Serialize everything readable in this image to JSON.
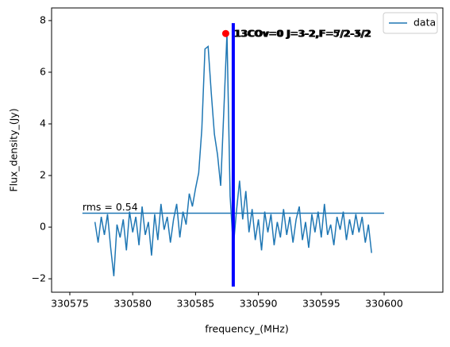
{
  "chart_data": {
    "type": "line",
    "xlabel": "frequency_(MHz)",
    "ylabel": "Flux_density_(Jy)",
    "x": [
      330577,
      330577.25,
      330577.5,
      330577.75,
      330578,
      330578.25,
      330578.5,
      330578.75,
      330579,
      330579.25,
      330579.5,
      330579.75,
      330580,
      330580.25,
      330580.5,
      330580.75,
      330581,
      330581.25,
      330581.5,
      330581.75,
      330582,
      330582.25,
      330582.5,
      330582.75,
      330583,
      330583.25,
      330583.5,
      330583.75,
      330584,
      330584.25,
      330584.5,
      330584.75,
      330585,
      330585.25,
      330585.5,
      330585.75,
      330586,
      330586.25,
      330586.5,
      330586.75,
      330587,
      330587.25,
      330587.5,
      330587.75,
      330588,
      330588.25,
      330588.5,
      330588.75,
      330589,
      330589.25,
      330589.5,
      330589.75,
      330590,
      330590.25,
      330590.5,
      330590.75,
      330591,
      330591.25,
      330591.5,
      330591.75,
      330592,
      330592.25,
      330592.5,
      330592.75,
      330593,
      330593.25,
      330593.5,
      330593.75,
      330594,
      330594.25,
      330594.5,
      330594.75,
      330595,
      330595.25,
      330595.5,
      330595.75,
      330596,
      330596.25,
      330596.5,
      330596.75,
      330597,
      330597.25,
      330597.5,
      330597.75,
      330598,
      330598.25,
      330598.5,
      330598.75,
      330599
    ],
    "series": [
      {
        "name": "data",
        "color": "#1f77b4",
        "values": [
          0.2,
          -0.6,
          0.4,
          -0.3,
          0.5,
          -0.8,
          -1.9,
          0.1,
          -0.4,
          0.3,
          -0.9,
          0.6,
          -0.2,
          0.4,
          -0.7,
          0.8,
          -0.3,
          0.2,
          -1.1,
          0.5,
          -0.5,
          0.9,
          -0.1,
          0.4,
          -0.6,
          0.3,
          0.9,
          -0.4,
          0.6,
          0.1,
          1.3,
          0.8,
          1.5,
          2.1,
          3.8,
          6.9,
          7.0,
          5.2,
          3.6,
          2.8,
          1.6,
          4.5,
          7.5,
          1.2,
          -0.8,
          0.6,
          1.8,
          0.3,
          1.4,
          -0.2,
          0.7,
          -0.5,
          0.3,
          -0.9,
          0.6,
          -0.2,
          0.5,
          -0.7,
          0.2,
          -0.4,
          0.7,
          -0.3,
          0.4,
          -0.6,
          0.3,
          0.8,
          -0.5,
          0.2,
          -0.8,
          0.5,
          -0.2,
          0.6,
          -0.4,
          0.9,
          -0.3,
          0.1,
          -0.7,
          0.4,
          -0.1,
          0.6,
          -0.5,
          0.3,
          -0.3,
          0.5,
          -0.2,
          0.4,
          -0.6,
          0.1,
          -1.0
        ]
      }
    ],
    "hline": {
      "y": 0.54,
      "xmin": 330576,
      "xmax": 330600,
      "color": "#1f77b4",
      "label": "rms = 0.54"
    },
    "vline": {
      "x": 330588,
      "ymin": -2.3,
      "ymax": 7.9,
      "color": "#0000ff"
    },
    "marker": {
      "x": 330587.4,
      "y": 7.5,
      "color": "#ff0000"
    },
    "annotations": [
      "13COv=0 J=3-2,F=5/2-3/2",
      "13COv=0 J=3-2,F=7/2-5/2"
    ],
    "xlim": [
      330573.55,
      330604.67
    ],
    "ylim": [
      -2.52,
      8.49
    ],
    "xticks": [
      330575,
      330580,
      330585,
      330590,
      330595,
      330600
    ],
    "yticks": [
      {
        "value": -2,
        "label": "−2"
      },
      0,
      2,
      4,
      6,
      8
    ],
    "legend": "upper right"
  }
}
